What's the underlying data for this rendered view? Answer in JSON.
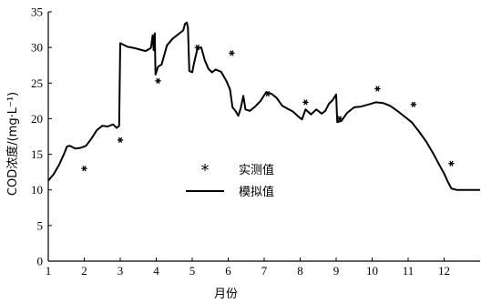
{
  "chart_data": {
    "type": "line",
    "title": "",
    "xlabel": "月份",
    "ylabel": "COD浓度/(mg·L⁻¹)",
    "xlim": [
      1,
      13
    ],
    "ylim": [
      0,
      35
    ],
    "x_ticks": [
      1,
      2,
      3,
      4,
      5,
      6,
      7,
      8,
      9,
      10,
      11,
      12
    ],
    "y_ticks": [
      0,
      5,
      10,
      15,
      20,
      25,
      30,
      35
    ],
    "grid": false,
    "legend_position": "center-left",
    "colors": {
      "line": "#000000",
      "marker": "#000000"
    },
    "series": [
      {
        "name": "实测值",
        "kind": "scatter",
        "marker": "asterisk",
        "points": [
          [
            2.0,
            13.0
          ],
          [
            3.0,
            17.0
          ],
          [
            4.05,
            25.3
          ],
          [
            5.15,
            30.0
          ],
          [
            6.1,
            29.2
          ],
          [
            7.1,
            23.5
          ],
          [
            8.15,
            22.3
          ],
          [
            9.1,
            20.0
          ],
          [
            10.15,
            24.2
          ],
          [
            11.15,
            22.0
          ],
          [
            12.2,
            13.7
          ]
        ]
      },
      {
        "name": "模拟值",
        "kind": "line",
        "points": [
          [
            1.0,
            11.3
          ],
          [
            1.15,
            12.2
          ],
          [
            1.3,
            13.5
          ],
          [
            1.45,
            15.2
          ],
          [
            1.52,
            16.1
          ],
          [
            1.6,
            16.2
          ],
          [
            1.75,
            15.8
          ],
          [
            1.9,
            15.9
          ],
          [
            2.05,
            16.2
          ],
          [
            2.2,
            17.2
          ],
          [
            2.35,
            18.4
          ],
          [
            2.5,
            19.0
          ],
          [
            2.65,
            18.9
          ],
          [
            2.8,
            19.2
          ],
          [
            2.9,
            18.7
          ],
          [
            2.97,
            19.0
          ],
          [
            3.0,
            30.6
          ],
          [
            3.2,
            30.1
          ],
          [
            3.4,
            29.9
          ],
          [
            3.55,
            29.7
          ],
          [
            3.7,
            29.5
          ],
          [
            3.85,
            29.9
          ],
          [
            3.9,
            31.7
          ],
          [
            3.93,
            29.6
          ],
          [
            3.96,
            32.0
          ],
          [
            3.98,
            26.2
          ],
          [
            4.05,
            27.3
          ],
          [
            4.15,
            27.6
          ],
          [
            4.3,
            30.3
          ],
          [
            4.45,
            31.2
          ],
          [
            4.6,
            31.8
          ],
          [
            4.75,
            32.4
          ],
          [
            4.8,
            33.3
          ],
          [
            4.85,
            33.5
          ],
          [
            4.88,
            32.8
          ],
          [
            4.92,
            26.7
          ],
          [
            5.0,
            26.5
          ],
          [
            5.05,
            27.8
          ],
          [
            5.15,
            29.9
          ],
          [
            5.25,
            30.0
          ],
          [
            5.35,
            28.2
          ],
          [
            5.45,
            27.0
          ],
          [
            5.55,
            26.5
          ],
          [
            5.65,
            26.9
          ],
          [
            5.8,
            26.6
          ],
          [
            5.95,
            25.3
          ],
          [
            6.05,
            24.1
          ],
          [
            6.12,
            21.6
          ],
          [
            6.2,
            21.1
          ],
          [
            6.28,
            20.4
          ],
          [
            6.35,
            21.5
          ],
          [
            6.42,
            23.2
          ],
          [
            6.48,
            21.3
          ],
          [
            6.6,
            21.1
          ],
          [
            6.75,
            21.7
          ],
          [
            6.9,
            22.5
          ],
          [
            7.05,
            23.7
          ],
          [
            7.2,
            23.5
          ],
          [
            7.35,
            22.9
          ],
          [
            7.5,
            21.8
          ],
          [
            7.65,
            21.4
          ],
          [
            7.8,
            21.0
          ],
          [
            7.95,
            20.3
          ],
          [
            8.05,
            19.9
          ],
          [
            8.15,
            21.3
          ],
          [
            8.3,
            20.6
          ],
          [
            8.45,
            21.3
          ],
          [
            8.6,
            20.7
          ],
          [
            8.7,
            21.1
          ],
          [
            8.8,
            22.1
          ],
          [
            8.9,
            22.6
          ],
          [
            9.0,
            23.4
          ],
          [
            9.03,
            19.5
          ],
          [
            9.15,
            19.7
          ],
          [
            9.3,
            20.8
          ],
          [
            9.5,
            21.6
          ],
          [
            9.7,
            21.7
          ],
          [
            9.9,
            22.0
          ],
          [
            10.1,
            22.3
          ],
          [
            10.3,
            22.2
          ],
          [
            10.5,
            21.8
          ],
          [
            10.7,
            21.1
          ],
          [
            10.9,
            20.3
          ],
          [
            11.1,
            19.5
          ],
          [
            11.3,
            18.2
          ],
          [
            11.5,
            16.8
          ],
          [
            11.7,
            15.1
          ],
          [
            11.9,
            13.2
          ],
          [
            12.0,
            12.3
          ],
          [
            12.1,
            11.2
          ],
          [
            12.2,
            10.2
          ],
          [
            12.35,
            10.0
          ],
          [
            12.6,
            10.0
          ],
          [
            12.85,
            10.0
          ],
          [
            13.0,
            10.0
          ]
        ]
      }
    ]
  }
}
